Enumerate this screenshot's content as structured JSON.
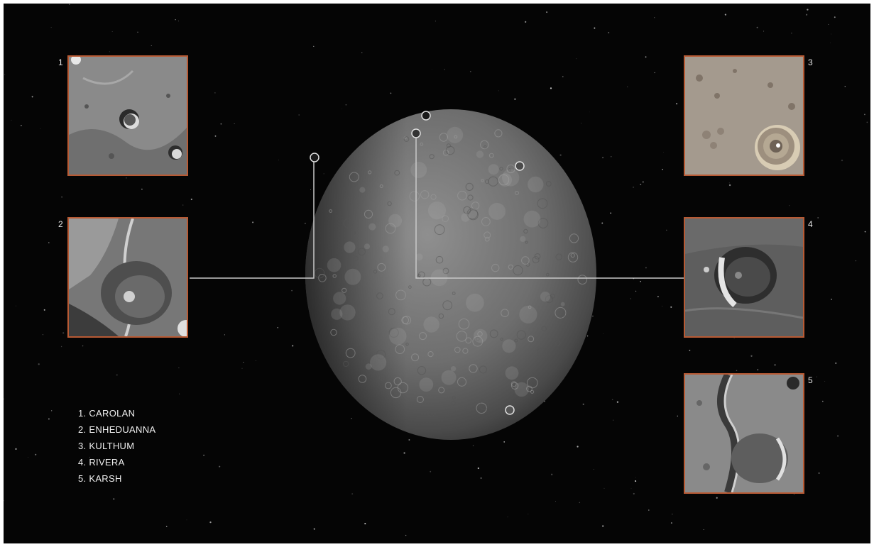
{
  "features": [
    {
      "number": "1",
      "name": "CAROLAN"
    },
    {
      "number": "2",
      "name": "ENHEDUANNA"
    },
    {
      "number": "3",
      "name": "KULTHUM"
    },
    {
      "number": "4",
      "name": "RIVERA"
    },
    {
      "number": "5",
      "name": "KARSH"
    }
  ],
  "legend": [
    "1. CAROLAN",
    "2. ENHEDUANNA",
    "3. KULTHUM",
    "4. RIVERA",
    "5. KARSH"
  ],
  "colors": {
    "background": "#050505",
    "panel_border": "#b85a34",
    "leader_line": "#c8c8c8",
    "text": "#f0f0f0"
  }
}
